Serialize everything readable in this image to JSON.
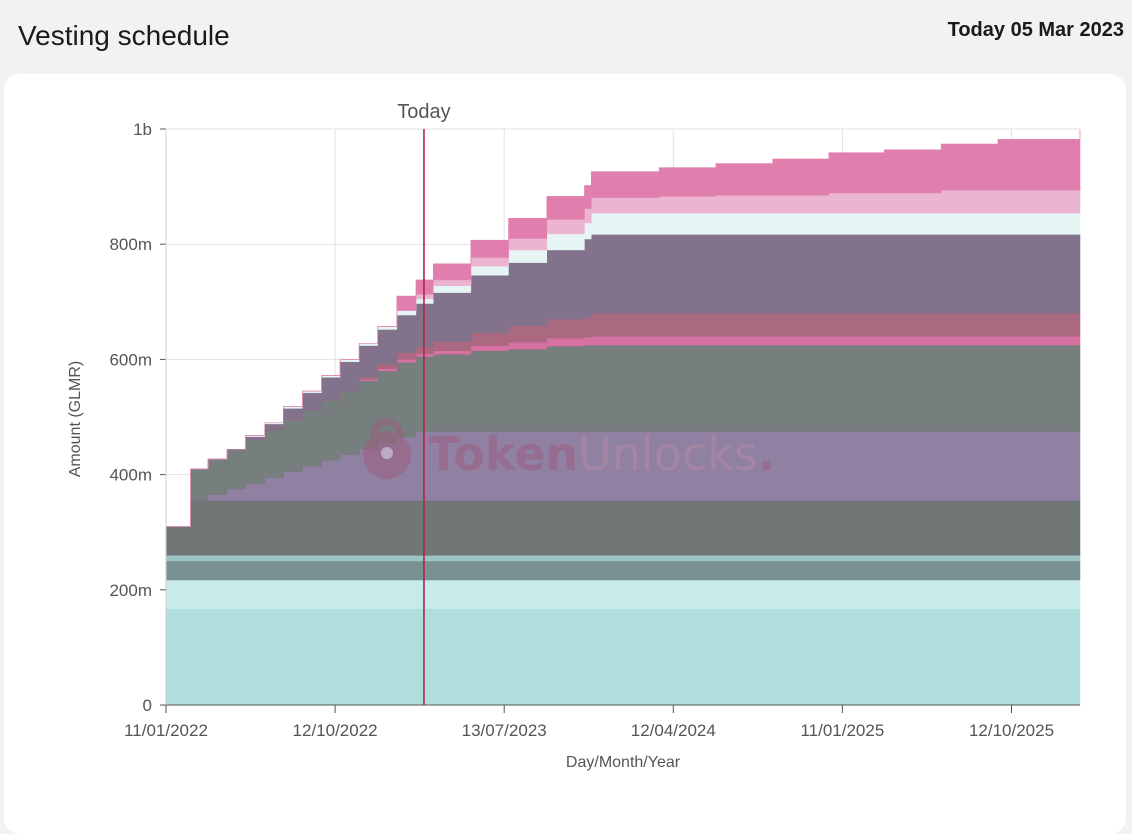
{
  "header": {
    "title": "Vesting schedule",
    "today_text": "Today 05 Mar 2023"
  },
  "watermark": {
    "text_primary": "Token",
    "text_secondary": "Unlocks",
    "dot": "."
  },
  "colors": {
    "today_line": "#b0264a",
    "grid": "#e2e2e2",
    "axis": "#555555",
    "watermark_primary": "#9b5f7f",
    "watermark_secondary": "#b58aa6"
  },
  "chart_data": {
    "type": "area",
    "stacked": true,
    "step": true,
    "title": "",
    "xlabel": "Day/Month/Year",
    "ylabel": "Amount (GLMR)",
    "today": {
      "label": "Today",
      "date": "2023-03-05"
    },
    "xlim": [
      "2022-01-11",
      "2026-01-31"
    ],
    "ylim": [
      0,
      1000000000
    ],
    "x_ticks": [
      {
        "date": "2022-01-11",
        "label": "11/01/2022"
      },
      {
        "date": "2022-10-12",
        "label": "12/10/2022"
      },
      {
        "date": "2023-07-13",
        "label": "13/07/2023"
      },
      {
        "date": "2024-04-12",
        "label": "12/04/2024"
      },
      {
        "date": "2025-01-11",
        "label": "11/01/2025"
      },
      {
        "date": "2025-10-12",
        "label": "12/10/2025"
      }
    ],
    "y_ticks": [
      {
        "value": 0,
        "label": "0"
      },
      {
        "value": 200000000,
        "label": "200m"
      },
      {
        "value": 400000000,
        "label": "400m"
      },
      {
        "value": 600000000,
        "label": "600m"
      },
      {
        "value": 800000000,
        "label": "800m"
      },
      {
        "value": 1000000000,
        "label": "1b"
      }
    ],
    "grid": true,
    "legend": "none",
    "series": [
      {
        "color": "#aedddc",
        "points": [
          [
            "2022-01-11",
            167000000
          ]
        ]
      },
      {
        "color": "#c8eaea",
        "points": [
          [
            "2022-01-11",
            50000000
          ]
        ]
      },
      {
        "color": "#76908f",
        "points": [
          [
            "2022-01-11",
            33000000
          ]
        ]
      },
      {
        "color": "#9bc4c3",
        "points": [
          [
            "2022-01-11",
            10000000
          ]
        ]
      },
      {
        "color": "#6e7474",
        "points": [
          [
            "2022-01-11",
            50000000
          ],
          [
            "2022-02-20",
            95000000
          ]
        ]
      },
      {
        "color": "#8e7da0",
        "points": [
          [
            "2022-01-11",
            0
          ],
          [
            "2022-02-20",
            0
          ],
          [
            "2022-03-20",
            10000000
          ],
          [
            "2022-04-20",
            20000000
          ],
          [
            "2022-05-20",
            30000000
          ],
          [
            "2022-06-20",
            40000000
          ],
          [
            "2022-07-20",
            50000000
          ],
          [
            "2022-08-20",
            60000000
          ],
          [
            "2022-09-20",
            70000000
          ],
          [
            "2022-10-20",
            80000000
          ],
          [
            "2022-11-20",
            90000000
          ],
          [
            "2022-12-20",
            100000000
          ],
          [
            "2023-01-20",
            110000000
          ],
          [
            "2023-02-20",
            120000000
          ]
        ]
      },
      {
        "color": "#737b7b",
        "points": [
          [
            "2022-01-11",
            0
          ],
          [
            "2022-02-20",
            55000000
          ],
          [
            "2022-03-20",
            62000000
          ],
          [
            "2022-04-20",
            69000000
          ],
          [
            "2022-05-20",
            76000000
          ],
          [
            "2022-06-20",
            83000000
          ],
          [
            "2022-07-20",
            90000000
          ],
          [
            "2022-08-20",
            97000000
          ],
          [
            "2022-09-20",
            104000000
          ],
          [
            "2022-10-20",
            111000000
          ],
          [
            "2022-11-20",
            118000000
          ],
          [
            "2022-12-20",
            125000000
          ],
          [
            "2023-01-20",
            130000000
          ],
          [
            "2023-03-20",
            134000000
          ],
          [
            "2023-05-20",
            140000000
          ],
          [
            "2023-07-20",
            143000000
          ],
          [
            "2023-09-20",
            148000000
          ],
          [
            "2023-11-20",
            150000000
          ]
        ]
      },
      {
        "color": "#d46f9f",
        "points": [
          [
            "2022-01-11",
            0
          ],
          [
            "2022-10-20",
            0
          ],
          [
            "2022-11-20",
            2000000
          ],
          [
            "2022-12-20",
            4000000
          ],
          [
            "2023-01-20",
            5000000
          ],
          [
            "2023-03-20",
            6000000
          ],
          [
            "2023-05-20",
            9000000
          ],
          [
            "2023-07-20",
            12000000
          ],
          [
            "2023-09-20",
            14000000
          ],
          [
            "2023-12-01",
            15000000
          ]
        ]
      },
      {
        "color": "#a9667e",
        "points": [
          [
            "2022-01-11",
            0
          ],
          [
            "2022-10-20",
            0
          ],
          [
            "2022-11-20",
            4000000
          ],
          [
            "2022-12-20",
            8000000
          ],
          [
            "2023-01-20",
            12000000
          ],
          [
            "2023-03-20",
            16000000
          ],
          [
            "2023-05-20",
            22000000
          ],
          [
            "2023-07-20",
            28000000
          ],
          [
            "2023-09-20",
            33000000
          ],
          [
            "2023-12-01",
            40000000
          ]
        ]
      },
      {
        "color": "#7f6f8a",
        "points": [
          [
            "2022-01-11",
            0
          ],
          [
            "2022-04-20",
            0
          ],
          [
            "2022-05-20",
            5000000
          ],
          [
            "2022-06-20",
            10000000
          ],
          [
            "2022-07-20",
            20000000
          ],
          [
            "2022-08-20",
            30000000
          ],
          [
            "2022-09-20",
            40000000
          ],
          [
            "2022-10-20",
            50000000
          ],
          [
            "2022-11-20",
            55000000
          ],
          [
            "2022-12-20",
            60000000
          ],
          [
            "2023-01-20",
            65000000
          ],
          [
            "2023-02-20",
            75000000
          ],
          [
            "2023-03-20",
            85000000
          ],
          [
            "2023-05-20",
            100000000
          ],
          [
            "2023-07-20",
            110000000
          ],
          [
            "2023-09-20",
            120000000
          ],
          [
            "2023-11-20",
            137000000
          ]
        ]
      },
      {
        "color": "#e6f4f4",
        "points": [
          [
            "2022-01-11",
            0
          ],
          [
            "2022-04-20",
            0
          ],
          [
            "2022-05-20",
            2000000
          ],
          [
            "2022-07-20",
            3000000
          ],
          [
            "2022-10-20",
            4000000
          ],
          [
            "2022-12-20",
            5000000
          ],
          [
            "2023-01-20",
            8000000
          ],
          [
            "2023-03-20",
            12000000
          ],
          [
            "2023-05-20",
            16000000
          ],
          [
            "2023-07-20",
            22000000
          ],
          [
            "2023-09-20",
            28000000
          ],
          [
            "2023-12-01",
            37000000
          ]
        ]
      },
      {
        "color": "#ebb3cf",
        "points": [
          [
            "2022-01-11",
            0
          ],
          [
            "2023-01-20",
            0
          ],
          [
            "2023-02-20",
            8000000
          ],
          [
            "2023-03-20",
            10000000
          ],
          [
            "2023-05-20",
            15000000
          ],
          [
            "2023-07-20",
            20000000
          ],
          [
            "2023-09-20",
            25000000
          ],
          [
            "2023-12-01",
            27000000
          ],
          [
            "2024-03-20",
            29000000
          ],
          [
            "2024-06-20",
            31000000
          ],
          [
            "2024-12-20",
            35000000
          ],
          [
            "2025-06-20",
            40000000
          ],
          [
            "2026-01-31",
            45000000
          ]
        ]
      },
      {
        "color": "#df7cab",
        "points": [
          [
            "2022-01-11",
            0
          ],
          [
            "2022-12-20",
            0
          ],
          [
            "2023-01-20",
            25000000
          ],
          [
            "2023-03-20",
            28000000
          ],
          [
            "2023-05-20",
            30000000
          ],
          [
            "2023-07-20",
            35000000
          ],
          [
            "2023-09-20",
            40000000
          ],
          [
            "2023-12-01",
            45000000
          ],
          [
            "2024-03-20",
            50000000
          ],
          [
            "2024-06-20",
            55000000
          ],
          [
            "2024-09-20",
            63000000
          ],
          [
            "2024-12-20",
            70000000
          ],
          [
            "2025-03-20",
            75000000
          ],
          [
            "2025-06-20",
            80000000
          ],
          [
            "2025-09-20",
            88000000
          ],
          [
            "2026-01-31",
            100000000
          ]
        ]
      }
    ]
  }
}
